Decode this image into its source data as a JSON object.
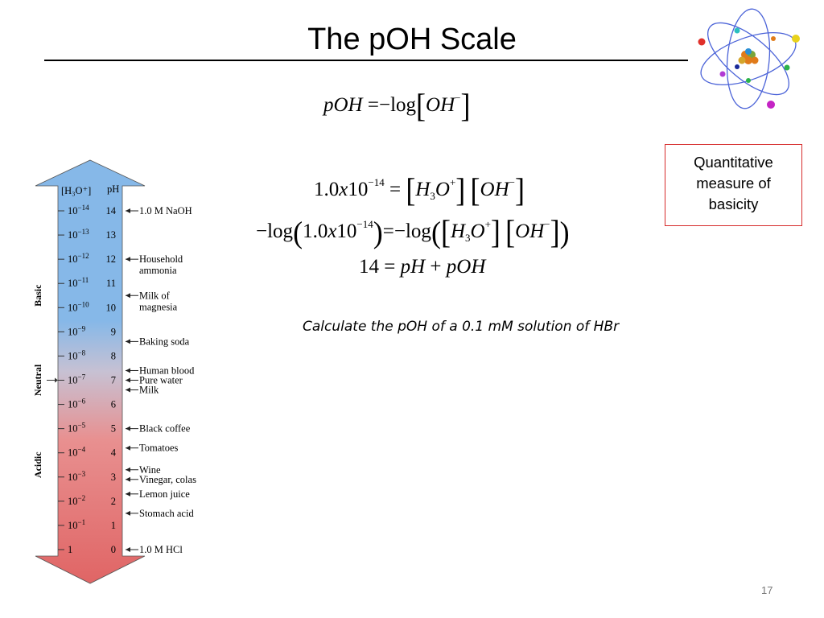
{
  "slide": {
    "title": "The pOH Scale",
    "slide_number": "17"
  },
  "equations": {
    "poh_definition": {
      "lhs": "pOH",
      "equals": "=",
      "neg": "−",
      "log": "log",
      "ion": "OH",
      "charge": "−"
    },
    "kw": {
      "coef": "1.0",
      "x": "x",
      "ten": "10",
      "exp": "−14",
      "equals": "=",
      "h": "H",
      "sub": "3",
      "o": "O",
      "plus_charge": "+",
      "oh": "OH",
      "minus_charge": "−"
    },
    "log_kw": {
      "neg": "−",
      "log": "log"
    },
    "sum": {
      "fourteen": "14",
      "equals": "=",
      "ph": "pH",
      "plus": "+",
      "poh": "pOH"
    }
  },
  "callout": {
    "line1": "Quantitative",
    "line2": "measure of",
    "line3": "basicity"
  },
  "question": "Calculate the pOH of a 0.1 mM solution of HBr",
  "ph_scale": {
    "header_conc": "[H₃O⁺]",
    "header_ph": "pH",
    "region_labels": {
      "basic": "Basic",
      "neutral": "Neutral",
      "acidic": "Acidic"
    },
    "rows": [
      {
        "conc_base": "10",
        "conc_exp": "−14",
        "ph": "14"
      },
      {
        "conc_base": "10",
        "conc_exp": "−13",
        "ph": "13"
      },
      {
        "conc_base": "10",
        "conc_exp": "−12",
        "ph": "12"
      },
      {
        "conc_base": "10",
        "conc_exp": "−11",
        "ph": "11"
      },
      {
        "conc_base": "10",
        "conc_exp": "−10",
        "ph": "10"
      },
      {
        "conc_base": "10",
        "conc_exp": "−9",
        "ph": "9"
      },
      {
        "conc_base": "10",
        "conc_exp": "−8",
        "ph": "8"
      },
      {
        "conc_base": "10",
        "conc_exp": "−7",
        "ph": "7"
      },
      {
        "conc_base": "10",
        "conc_exp": "−6",
        "ph": "6"
      },
      {
        "conc_base": "10",
        "conc_exp": "−5",
        "ph": "5"
      },
      {
        "conc_base": "10",
        "conc_exp": "−4",
        "ph": "4"
      },
      {
        "conc_base": "10",
        "conc_exp": "−3",
        "ph": "3"
      },
      {
        "conc_base": "10",
        "conc_exp": "−2",
        "ph": "2"
      },
      {
        "conc_base": "10",
        "conc_exp": "−1",
        "ph": "1"
      },
      {
        "conc_base": "1",
        "conc_exp": "",
        "ph": "0"
      }
    ],
    "substances": [
      {
        "ph": 14,
        "lines": [
          "1.0 M NaOH"
        ]
      },
      {
        "ph": 12,
        "lines": [
          "Household",
          "ammonia"
        ]
      },
      {
        "ph": 10.5,
        "lines": [
          "Milk of",
          "magnesia"
        ]
      },
      {
        "ph": 8.6,
        "lines": [
          "Baking soda"
        ]
      },
      {
        "ph": 7.4,
        "lines": [
          "Human blood"
        ]
      },
      {
        "ph": 7,
        "lines": [
          "Pure water"
        ]
      },
      {
        "ph": 6.6,
        "lines": [
          "Milk"
        ]
      },
      {
        "ph": 5,
        "lines": [
          "Black coffee"
        ]
      },
      {
        "ph": 4.2,
        "lines": [
          "Tomatoes"
        ]
      },
      {
        "ph": 3.3,
        "lines": [
          "Wine"
        ]
      },
      {
        "ph": 2.9,
        "lines": [
          "Vinegar, colas"
        ]
      },
      {
        "ph": 2.3,
        "lines": [
          "Lemon juice"
        ]
      },
      {
        "ph": 1.5,
        "lines": [
          "Stomach acid"
        ]
      },
      {
        "ph": 0,
        "lines": [
          "1.0 M HCl"
        ]
      }
    ],
    "colors": {
      "top": "#86b8e8",
      "middle": "#c7c1d3",
      "bottom": "#e06565"
    }
  }
}
